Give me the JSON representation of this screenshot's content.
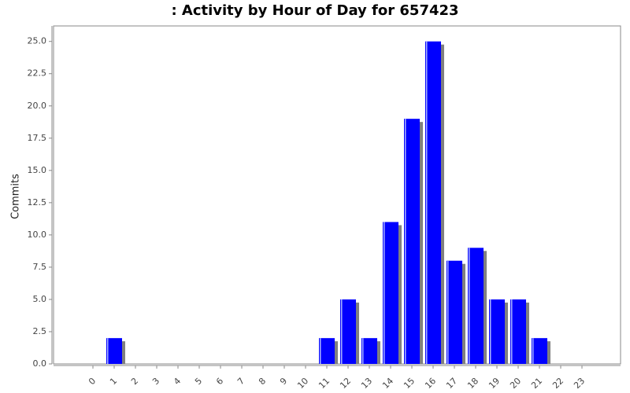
{
  "chart_data": {
    "type": "bar",
    "title": ": Activity by Hour of Day for 657423",
    "y_label": "Commits",
    "categories": [
      "0",
      "1",
      "2",
      "3",
      "4",
      "5",
      "6",
      "7",
      "8",
      "9",
      "10",
      "11",
      "12",
      "13",
      "14",
      "15",
      "16",
      "17",
      "18",
      "19",
      "20",
      "21",
      "22",
      "23"
    ],
    "values": [
      0,
      2,
      0,
      0,
      0,
      0,
      0,
      0,
      0,
      0,
      0,
      2,
      5,
      2,
      11,
      19,
      25,
      8,
      9,
      5,
      5,
      2,
      0,
      0
    ],
    "color": "#0000ff",
    "shadow_color": "#808080",
    "ylim": [
      0,
      26.2
    ],
    "yticks": [
      {
        "value": 0,
        "label": "0.0"
      },
      {
        "value": 2.5,
        "label": "2.5"
      },
      {
        "value": 5,
        "label": "5.0"
      },
      {
        "value": 7.5,
        "label": "7.5"
      },
      {
        "value": 10,
        "label": "10.0"
      },
      {
        "value": 12.5,
        "label": "12.5"
      },
      {
        "value": 15,
        "label": "15.0"
      },
      {
        "value": 17.5,
        "label": "17.5"
      },
      {
        "value": 20,
        "label": "20.0"
      },
      {
        "value": 22.5,
        "label": "22.5"
      },
      {
        "value": 25,
        "label": "25.0"
      }
    ],
    "grid": false
  }
}
